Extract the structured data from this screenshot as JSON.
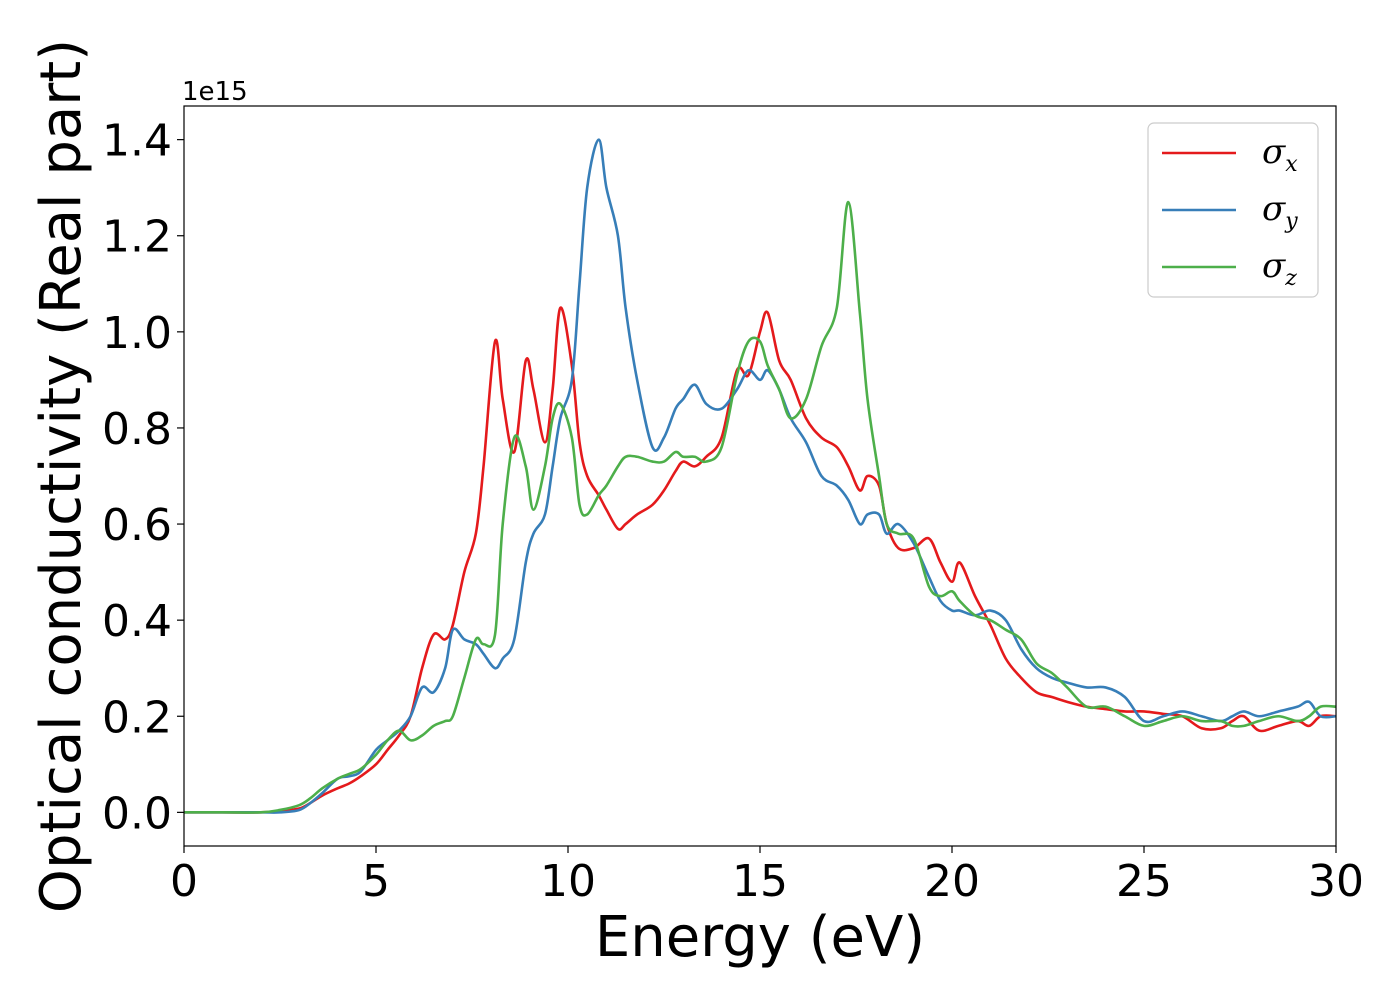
{
  "chart_data": {
    "type": "line",
    "xlabel": "Energy (eV)",
    "ylabel": "Optical conductivity (Real part)",
    "y_offset_label": "1e15",
    "xlim": [
      0,
      30
    ],
    "ylim": [
      -0.07,
      1.47
    ],
    "xticks": [
      0,
      5,
      10,
      15,
      20,
      25,
      30
    ],
    "xtick_labels": [
      "0",
      "5",
      "10",
      "15",
      "20",
      "25",
      "30"
    ],
    "yticks": [
      0.0,
      0.2,
      0.4,
      0.6,
      0.8,
      1.0,
      1.2,
      1.4
    ],
    "ytick_labels": [
      "0.0",
      "0.2",
      "0.4",
      "0.6",
      "0.8",
      "1.0",
      "1.2",
      "1.4"
    ],
    "grid": false,
    "legend_position": "top-right",
    "series": [
      {
        "name": "σx",
        "symbol": "σ",
        "subscript": "x",
        "color": "#e41a1c",
        "x": [
          0,
          1,
          2,
          2.5,
          3,
          3.3,
          3.6,
          4,
          4.3,
          4.6,
          5,
          5.3,
          5.6,
          5.9,
          6.2,
          6.5,
          6.8,
          7,
          7.3,
          7.6,
          7.8,
          8.1,
          8.3,
          8.6,
          8.9,
          9.1,
          9.4,
          9.6,
          9.8,
          10.1,
          10.3,
          10.5,
          10.8,
          11,
          11.3,
          11.5,
          11.8,
          12.2,
          12.5,
          12.8,
          13,
          13.3,
          13.6,
          14,
          14.4,
          14.7,
          15,
          15.2,
          15.5,
          15.8,
          16.2,
          16.6,
          17,
          17.3,
          17.6,
          17.8,
          18.1,
          18.3,
          18.6,
          19,
          19.4,
          19.7,
          20,
          20.2,
          20.6,
          21,
          21.4,
          21.8,
          22.2,
          22.6,
          23,
          23.5,
          24,
          24.5,
          25,
          25.5,
          26,
          26.5,
          27,
          27.3,
          27.6,
          28,
          28.5,
          29,
          29.3,
          29.6,
          30
        ],
        "y": [
          0,
          0,
          0,
          0.003,
          0.008,
          0.02,
          0.035,
          0.05,
          0.06,
          0.075,
          0.1,
          0.13,
          0.16,
          0.2,
          0.3,
          0.37,
          0.36,
          0.39,
          0.5,
          0.58,
          0.72,
          0.98,
          0.86,
          0.75,
          0.94,
          0.88,
          0.77,
          0.88,
          1.05,
          0.93,
          0.77,
          0.7,
          0.66,
          0.63,
          0.59,
          0.6,
          0.62,
          0.64,
          0.67,
          0.71,
          0.73,
          0.72,
          0.74,
          0.78,
          0.92,
          0.91,
          1.0,
          1.04,
          0.94,
          0.9,
          0.82,
          0.78,
          0.76,
          0.72,
          0.67,
          0.7,
          0.68,
          0.6,
          0.55,
          0.55,
          0.57,
          0.52,
          0.48,
          0.52,
          0.45,
          0.39,
          0.32,
          0.28,
          0.25,
          0.24,
          0.23,
          0.22,
          0.215,
          0.21,
          0.21,
          0.205,
          0.2,
          0.175,
          0.175,
          0.19,
          0.2,
          0.17,
          0.18,
          0.19,
          0.18,
          0.2,
          0.2
        ]
      },
      {
        "name": "σy",
        "symbol": "σ",
        "subscript": "y",
        "color": "#377eb8",
        "x": [
          0,
          1,
          2,
          2.5,
          3,
          3.3,
          3.6,
          4,
          4.3,
          4.6,
          5,
          5.3,
          5.6,
          5.9,
          6.2,
          6.5,
          6.8,
          7,
          7.3,
          7.6,
          7.8,
          8.1,
          8.3,
          8.6,
          8.9,
          9.1,
          9.4,
          9.6,
          9.8,
          10.1,
          10.3,
          10.5,
          10.8,
          11,
          11.3,
          11.5,
          11.8,
          12.2,
          12.5,
          12.8,
          13,
          13.3,
          13.6,
          14,
          14.4,
          14.7,
          15,
          15.2,
          15.5,
          15.8,
          16.2,
          16.6,
          17,
          17.3,
          17.6,
          17.8,
          18.1,
          18.3,
          18.6,
          19,
          19.4,
          19.7,
          20,
          20.2,
          20.6,
          21,
          21.4,
          21.8,
          22.2,
          22.6,
          23,
          23.5,
          24,
          24.5,
          25,
          25.5,
          26,
          26.5,
          27,
          27.3,
          27.6,
          28,
          28.5,
          29,
          29.3,
          29.6,
          30
        ],
        "y": [
          0,
          0,
          0,
          0,
          0.005,
          0.02,
          0.04,
          0.07,
          0.075,
          0.085,
          0.13,
          0.15,
          0.17,
          0.2,
          0.26,
          0.25,
          0.3,
          0.38,
          0.36,
          0.35,
          0.33,
          0.3,
          0.32,
          0.36,
          0.52,
          0.58,
          0.62,
          0.72,
          0.82,
          0.9,
          1.1,
          1.3,
          1.4,
          1.3,
          1.2,
          1.05,
          0.9,
          0.76,
          0.78,
          0.84,
          0.86,
          0.89,
          0.85,
          0.84,
          0.88,
          0.92,
          0.9,
          0.92,
          0.88,
          0.82,
          0.77,
          0.7,
          0.68,
          0.65,
          0.6,
          0.62,
          0.62,
          0.58,
          0.6,
          0.56,
          0.49,
          0.44,
          0.42,
          0.42,
          0.41,
          0.42,
          0.4,
          0.34,
          0.3,
          0.28,
          0.27,
          0.26,
          0.26,
          0.24,
          0.19,
          0.2,
          0.21,
          0.2,
          0.19,
          0.2,
          0.21,
          0.2,
          0.21,
          0.22,
          0.23,
          0.2,
          0.2
        ]
      },
      {
        "name": "σz",
        "symbol": "σ",
        "subscript": "z",
        "color": "#4daf4a",
        "x": [
          0,
          1,
          2,
          2.5,
          3,
          3.3,
          3.6,
          4,
          4.3,
          4.6,
          5,
          5.3,
          5.6,
          5.9,
          6.2,
          6.5,
          6.8,
          7,
          7.3,
          7.6,
          7.8,
          8.1,
          8.3,
          8.6,
          8.9,
          9.1,
          9.4,
          9.6,
          9.8,
          10.1,
          10.3,
          10.5,
          10.8,
          11,
          11.3,
          11.5,
          11.8,
          12.2,
          12.5,
          12.8,
          13,
          13.3,
          13.6,
          14,
          14.4,
          14.7,
          15,
          15.2,
          15.5,
          15.8,
          16.2,
          16.6,
          17,
          17.3,
          17.6,
          17.8,
          18.1,
          18.3,
          18.6,
          19,
          19.4,
          19.7,
          20,
          20.2,
          20.6,
          21,
          21.4,
          21.8,
          22.2,
          22.6,
          23,
          23.5,
          24,
          24.5,
          25,
          25.5,
          26,
          26.5,
          27,
          27.3,
          27.6,
          28,
          28.5,
          29,
          29.3,
          29.6,
          30
        ],
        "y": [
          0,
          0,
          0,
          0.005,
          0.015,
          0.03,
          0.05,
          0.07,
          0.08,
          0.09,
          0.12,
          0.15,
          0.17,
          0.15,
          0.16,
          0.18,
          0.19,
          0.2,
          0.28,
          0.36,
          0.35,
          0.37,
          0.6,
          0.78,
          0.72,
          0.63,
          0.72,
          0.82,
          0.85,
          0.78,
          0.64,
          0.62,
          0.66,
          0.68,
          0.72,
          0.74,
          0.74,
          0.73,
          0.73,
          0.75,
          0.74,
          0.74,
          0.73,
          0.76,
          0.91,
          0.98,
          0.98,
          0.93,
          0.88,
          0.82,
          0.86,
          0.97,
          1.05,
          1.27,
          1.04,
          0.86,
          0.7,
          0.6,
          0.58,
          0.57,
          0.47,
          0.45,
          0.46,
          0.44,
          0.41,
          0.4,
          0.38,
          0.36,
          0.31,
          0.29,
          0.26,
          0.22,
          0.22,
          0.2,
          0.18,
          0.19,
          0.2,
          0.19,
          0.19,
          0.18,
          0.18,
          0.19,
          0.2,
          0.19,
          0.2,
          0.22,
          0.22
        ]
      }
    ]
  }
}
